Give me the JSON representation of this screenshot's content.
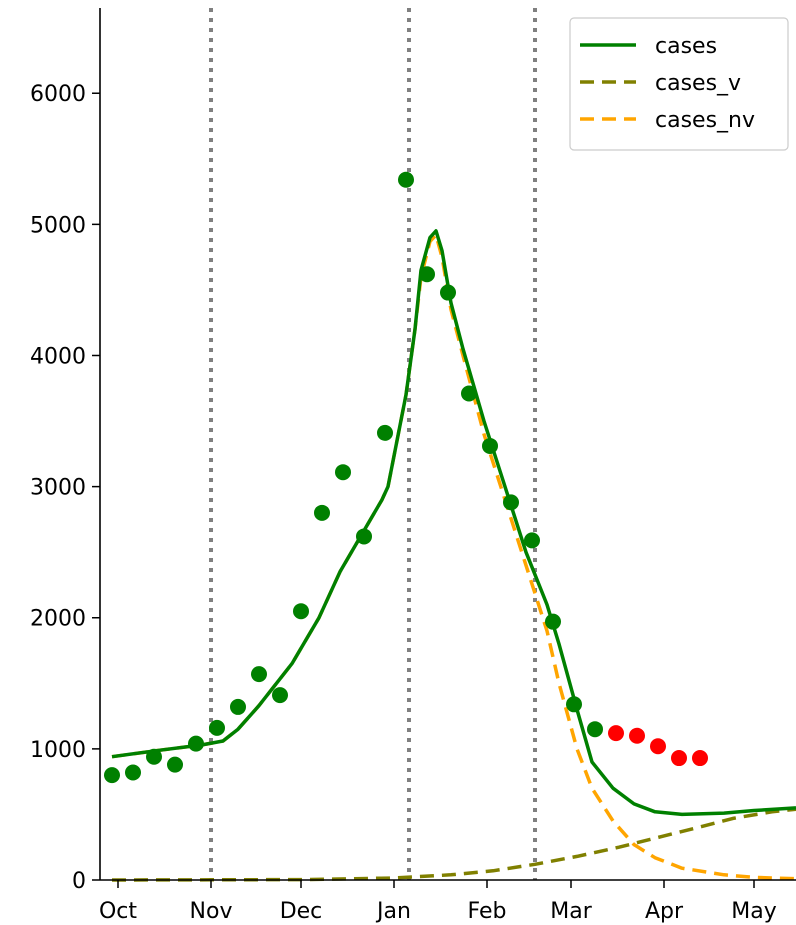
{
  "chart_data": {
    "type": "line",
    "title": "",
    "xlabel": "",
    "ylabel": "",
    "x_ticks": [
      "Oct",
      "Nov",
      "Dec",
      "Jan",
      "Feb",
      "Mar",
      "Apr",
      "May"
    ],
    "y_ticks": [
      "0",
      "1000",
      "2000",
      "3000",
      "4000",
      "5000",
      "6000"
    ],
    "y_tick_values": [
      0,
      1000,
      2000,
      3000,
      4000,
      5000,
      6000
    ],
    "xlim": [
      "2020-09-25",
      "2021-05-15"
    ],
    "ylim": [
      0,
      6650
    ],
    "grid": false,
    "legend": {
      "position": "top-right",
      "entries": [
        "cases",
        "cases_v",
        "cases_nv"
      ]
    },
    "vlines": {
      "color": "#808080",
      "style": "dotted",
      "x": [
        "2020-11-01",
        "2021-01-06",
        "2021-02-17"
      ]
    },
    "series": [
      {
        "name": "cases",
        "style": "solid",
        "color": "#008000",
        "points": [
          [
            "2020-09-29",
            940
          ],
          [
            "2020-10-15",
            990
          ],
          [
            "2020-10-29",
            1030
          ],
          [
            "2020-11-05",
            1060
          ],
          [
            "2020-11-10",
            1150
          ],
          [
            "2020-11-17",
            1330
          ],
          [
            "2020-11-28",
            1650
          ],
          [
            "2020-12-07",
            2000
          ],
          [
            "2020-12-14",
            2350
          ],
          [
            "2020-12-28",
            2900
          ],
          [
            "2020-12-30",
            3000
          ],
          [
            "2021-01-05",
            3700
          ],
          [
            "2021-01-08",
            4200
          ],
          [
            "2021-01-10",
            4650
          ],
          [
            "2021-01-13",
            4900
          ],
          [
            "2021-01-15",
            4950
          ],
          [
            "2021-01-17",
            4800
          ],
          [
            "2021-01-20",
            4400
          ],
          [
            "2021-01-24",
            4050
          ],
          [
            "2021-01-31",
            3500
          ],
          [
            "2021-02-07",
            3000
          ],
          [
            "2021-02-14",
            2500
          ],
          [
            "2021-02-21",
            2100
          ],
          [
            "2021-02-25",
            1800
          ],
          [
            "2021-03-03",
            1300
          ],
          [
            "2021-03-08",
            900
          ],
          [
            "2021-03-15",
            700
          ],
          [
            "2021-03-22",
            580
          ],
          [
            "2021-03-29",
            520
          ],
          [
            "2021-04-07",
            500
          ],
          [
            "2021-04-21",
            510
          ],
          [
            "2021-05-01",
            530
          ],
          [
            "2021-05-15",
            550
          ]
        ]
      },
      {
        "name": "cases_v",
        "style": "dashed",
        "color": "#808000",
        "points": [
          [
            "2020-09-29",
            0
          ],
          [
            "2020-12-01",
            3
          ],
          [
            "2021-01-01",
            15
          ],
          [
            "2021-01-20",
            40
          ],
          [
            "2021-02-03",
            70
          ],
          [
            "2021-02-17",
            120
          ],
          [
            "2021-03-03",
            180
          ],
          [
            "2021-03-17",
            250
          ],
          [
            "2021-03-31",
            330
          ],
          [
            "2021-04-14",
            410
          ],
          [
            "2021-04-24",
            470
          ],
          [
            "2021-05-07",
            520
          ],
          [
            "2021-05-15",
            540
          ]
        ]
      },
      {
        "name": "cases_nv",
        "style": "dashed",
        "color": "#FFA500",
        "points": [
          [
            "2020-09-29",
            940
          ],
          [
            "2020-10-15",
            990
          ],
          [
            "2020-10-29",
            1030
          ],
          [
            "2020-11-05",
            1060
          ],
          [
            "2020-11-10",
            1150
          ],
          [
            "2020-11-17",
            1330
          ],
          [
            "2020-11-28",
            1650
          ],
          [
            "2020-12-07",
            2000
          ],
          [
            "2020-12-14",
            2350
          ],
          [
            "2020-12-28",
            2900
          ],
          [
            "2020-12-30",
            3000
          ],
          [
            "2021-01-05",
            3700
          ],
          [
            "2021-01-08",
            4200
          ],
          [
            "2021-01-10",
            4600
          ],
          [
            "2021-01-13",
            4870
          ],
          [
            "2021-01-15",
            4920
          ],
          [
            "2021-01-17",
            4750
          ],
          [
            "2021-01-20",
            4350
          ],
          [
            "2021-01-24",
            4000
          ],
          [
            "2021-01-31",
            3400
          ],
          [
            "2021-02-07",
            2900
          ],
          [
            "2021-02-14",
            2400
          ],
          [
            "2021-02-21",
            1900
          ],
          [
            "2021-02-25",
            1500
          ],
          [
            "2021-03-03",
            1000
          ],
          [
            "2021-03-08",
            700
          ],
          [
            "2021-03-15",
            450
          ],
          [
            "2021-03-22",
            270
          ],
          [
            "2021-03-29",
            170
          ],
          [
            "2021-04-07",
            90
          ],
          [
            "2021-04-21",
            40
          ],
          [
            "2021-05-01",
            20
          ],
          [
            "2021-05-15",
            10
          ]
        ]
      },
      {
        "name": "",
        "type": "scatter",
        "color": "#008000",
        "points": [
          [
            "2020-09-29",
            800
          ],
          [
            "2020-10-06",
            820
          ],
          [
            "2020-10-13",
            940
          ],
          [
            "2020-10-20",
            880
          ],
          [
            "2020-10-27",
            1040
          ],
          [
            "2020-11-03",
            1160
          ],
          [
            "2020-11-10",
            1320
          ],
          [
            "2020-11-17",
            1570
          ],
          [
            "2020-11-24",
            1410
          ],
          [
            "2020-12-01",
            2050
          ],
          [
            "2020-12-08",
            2800
          ],
          [
            "2020-12-15",
            3110
          ],
          [
            "2020-12-22",
            2620
          ],
          [
            "2020-12-29",
            3410
          ],
          [
            "2021-01-05",
            5340
          ],
          [
            "2021-01-12",
            4620
          ],
          [
            "2021-01-19",
            4480
          ],
          [
            "2021-01-26",
            3710
          ],
          [
            "2021-02-02",
            3310
          ],
          [
            "2021-02-09",
            2880
          ],
          [
            "2021-02-16",
            2590
          ],
          [
            "2021-02-23",
            1970
          ],
          [
            "2021-03-02",
            1340
          ],
          [
            "2021-03-09",
            1150
          ]
        ]
      },
      {
        "name": "",
        "type": "scatter",
        "color": "#FF0000",
        "points": [
          [
            "2021-03-16",
            1120
          ],
          [
            "2021-03-23",
            1100
          ],
          [
            "2021-03-30",
            1020
          ],
          [
            "2021-04-06",
            930
          ],
          [
            "2021-04-13",
            930
          ]
        ]
      }
    ]
  }
}
